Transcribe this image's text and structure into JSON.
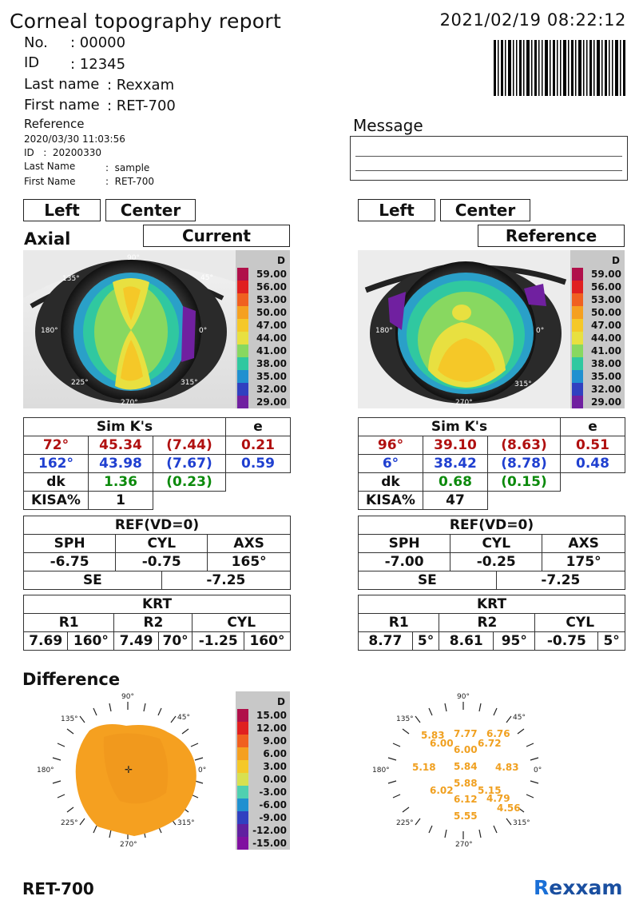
{
  "report": {
    "title": "Corneal topography report",
    "datetime": "2021/02/19 08:22:12"
  },
  "patient": {
    "no_label": "No.",
    "no_value": ": 00000",
    "id_label": "ID",
    "id_value": ": 12345",
    "last_name_label": "Last name",
    "last_name_value": ": Rexxam",
    "first_name_label": "First name",
    "first_name_value": ": RET-700"
  },
  "reference": {
    "heading": "Reference",
    "datetime": "2020/03/30 11:03:56",
    "id_line": "ID   :  20200330",
    "last_name_label": "Last Name",
    "last_name_value": ":  sample",
    "first_name_label": "First Name",
    "first_name_value": ":  RET-700"
  },
  "message": {
    "label": "Message"
  },
  "current_panel": {
    "eye": "Left",
    "position": "Center",
    "map_type": "Axial",
    "header": "Current",
    "simk": {
      "header": "Sim K's",
      "e_header": "e",
      "row1": {
        "axis": "72°",
        "k": "45.34",
        "r": "(7.44)",
        "e": "0.21"
      },
      "row2": {
        "axis": "162°",
        "k": "43.98",
        "r": "(7.67)",
        "e": "0.59"
      },
      "dk_label": "dk",
      "dk_value": "1.36",
      "dk_r": "(0.23)",
      "kisa_label": "KISA%",
      "kisa_value": "1"
    },
    "ref": {
      "header": "REF(VD=0)",
      "sph_label": "SPH",
      "cyl_label": "CYL",
      "axs_label": "AXS",
      "sph": "-6.75",
      "cyl": "-0.75",
      "axs": "165°",
      "se_label": "SE",
      "se": "-7.25"
    },
    "krt": {
      "header": "KRT",
      "r1_label": "R1",
      "r2_label": "R2",
      "cyl_label": "CYL",
      "r1": "7.69",
      "r1_axis": "160°",
      "r2": "7.49",
      "r2_axis": "70°",
      "cyl": "-1.25",
      "cyl_axis": "160°"
    },
    "angles": {
      "a90": "90°",
      "a45": "45°",
      "a135": "135°",
      "a180": "180°",
      "a0": "0°",
      "a225": "225°",
      "a315": "315°",
      "a270": "270°"
    }
  },
  "reference_panel": {
    "eye": "Left",
    "position": "Center",
    "header": "Reference",
    "simk": {
      "header": "Sim K's",
      "e_header": "e",
      "row1": {
        "axis": "96°",
        "k": "39.10",
        "r": "(8.63)",
        "e": "0.51"
      },
      "row2": {
        "axis": "6°",
        "k": "38.42",
        "r": "(8.78)",
        "e": "0.48"
      },
      "dk_label": "dk",
      "dk_value": "0.68",
      "dk_r": "(0.15)",
      "kisa_label": "KISA%",
      "kisa_value": "47"
    },
    "ref": {
      "header": "REF(VD=0)",
      "sph_label": "SPH",
      "cyl_label": "CYL",
      "axs_label": "AXS",
      "sph": "-7.00",
      "cyl": "-0.25",
      "axs": "175°",
      "se_label": "SE",
      "se": "-7.25"
    },
    "krt": {
      "header": "KRT",
      "r1_label": "R1",
      "r2_label": "R2",
      "cyl_label": "CYL",
      "r1": "8.77",
      "r1_axis": "5°",
      "r2": "8.61",
      "r2_axis": "95°",
      "cyl": "-0.75",
      "cyl_axis": "5°"
    },
    "angles": {
      "a180": "180°",
      "a0": "0°",
      "a315": "315°",
      "a270": "270°"
    }
  },
  "axial_scale": {
    "unit": "D",
    "labels": [
      "59.00",
      "56.00",
      "53.00",
      "50.00",
      "47.00",
      "44.00",
      "41.00",
      "38.00",
      "35.00",
      "32.00",
      "29.00"
    ],
    "colors": [
      "#b0104a",
      "#e02020",
      "#f06020",
      "#f5a020",
      "#f5c828",
      "#e8e040",
      "#88d860",
      "#30c8a0",
      "#2090d0",
      "#3040c0",
      "#7020a0"
    ]
  },
  "difference": {
    "title": "Difference",
    "scale_unit": "D",
    "scale_labels": [
      "15.00",
      "12.00",
      "9.00",
      "6.00",
      "3.00",
      "0.00",
      "-3.00",
      "-6.00",
      "-9.00",
      "-12.00",
      "-15.00"
    ],
    "scale_colors": [
      "#b0104a",
      "#e02020",
      "#f06020",
      "#f5a020",
      "#f5c828",
      "#d8e050",
      "#50d0b0",
      "#2090d0",
      "#3040c0",
      "#6020a0",
      "#8010a0"
    ],
    "angles": {
      "a90": "90°",
      "a45": "45°",
      "a135": "135°",
      "a180": "180°",
      "a0": "0°",
      "a225": "225°",
      "a315": "315°",
      "a270": "270°"
    },
    "values": [
      "5.83",
      "7.77",
      "6.76",
      "6.00",
      "6.00",
      "6.72",
      "5.18",
      "5.84",
      "4.83",
      "5.88",
      "6.02",
      "5.15",
      "6.12",
      "4.79",
      "4.56",
      "5.55"
    ]
  },
  "footer": {
    "model": "RET-700",
    "brand_r": "R",
    "brand_rest": "exxam"
  }
}
